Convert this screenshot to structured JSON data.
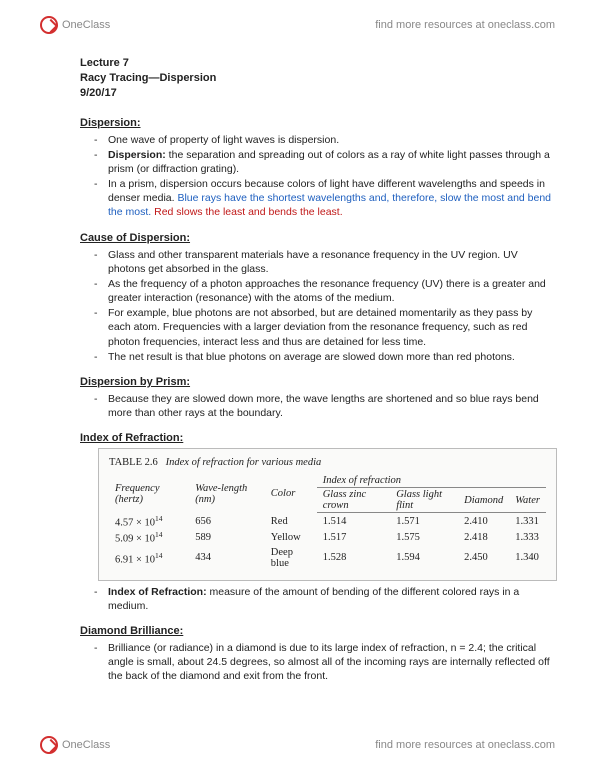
{
  "brand": {
    "name": "OneClass",
    "tagline": "find more resources at oneclass.com"
  },
  "lecture": {
    "num": "Lecture 7",
    "topic": "Racy Tracing—Dispersion",
    "date": "9/20/17"
  },
  "sections": {
    "dispersion": {
      "title": "Dispersion:",
      "b1": "One wave of property of light waves is dispersion.",
      "b2a": "Dispersion:",
      "b2b": " the separation and spreading out of colors as a ray of white light passes through a prism (or diffraction grating).",
      "b3a": "In a prism, dispersion occurs because colors of light have different wavelengths and speeds in denser media. ",
      "b3b": "Blue rays have the shortest wavelengths and, therefore, slow the most and bend the most. ",
      "b3c": "Red slows the least and bends the least."
    },
    "cause": {
      "title": "Cause of Dispersion:",
      "b1": "Glass and other transparent materials have a resonance frequency in the UV region. UV photons get absorbed in the glass.",
      "b2": "As the frequency of a photon approaches the resonance frequency (UV) there is a greater and greater interaction (resonance) with the atoms of the medium.",
      "b3": "For example, blue photons are not absorbed, but are detained momentarily as they pass by each atom. Frequencies with a larger deviation from the resonance frequency, such as red photon frequencies, interact less and thus are detained for less time.",
      "b4": "The net result is that blue photons on average are slowed down more than red photons."
    },
    "byprism": {
      "title": "Dispersion by Prism:",
      "b1": "Because they are slowed down more, the wave lengths are shortened and so blue rays bend more than other rays at the boundary."
    },
    "ior": {
      "title": "Index of Refraction:",
      "table": {
        "caption_num": "TABLE 2.6",
        "caption_txt": "Index of refraction for various media",
        "group_header": "Index of refraction",
        "headers": {
          "freq": "Frequency (hertz)",
          "wave": "Wave-length (nm)",
          "color": "Color",
          "zinc": "Glass zinc crown",
          "flint": "Glass light flint",
          "diamond": "Diamond",
          "water": "Water"
        },
        "rows": [
          {
            "freq_mant": "4.57",
            "freq_exp": "14",
            "wave": "656",
            "color": "Red",
            "zinc": "1.514",
            "flint": "1.571",
            "diamond": "2.410",
            "water": "1.331"
          },
          {
            "freq_mant": "5.09",
            "freq_exp": "14",
            "wave": "589",
            "color": "Yellow",
            "zinc": "1.517",
            "flint": "1.575",
            "diamond": "2.418",
            "water": "1.333"
          },
          {
            "freq_mant": "6.91",
            "freq_exp": "14",
            "wave": "434",
            "color": "Deep blue",
            "zinc": "1.528",
            "flint": "1.594",
            "diamond": "2.450",
            "water": "1.340"
          }
        ]
      },
      "defn_a": "Index of Refraction:",
      "defn_b": " measure of the amount of bending of the different colored rays in a medium."
    },
    "diamond": {
      "title": "Diamond Brilliance:",
      "b1": "Brilliance (or radiance) in a diamond is due to its large index of refraction, n = 2.4; the critical angle is small, about 24.5 degrees, so almost all of the incoming rays are internally reflected off the back of the diamond and exit from the front."
    }
  }
}
